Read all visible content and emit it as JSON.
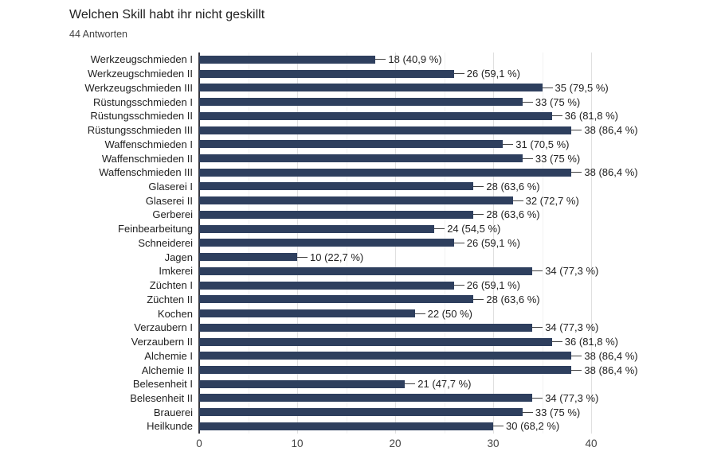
{
  "header": {
    "title": "Welchen Skill habt ihr nicht geskillt",
    "subtitle": "44 Antworten"
  },
  "chart_data": {
    "type": "bar",
    "orientation": "horizontal",
    "title": "Welchen Skill habt ihr nicht geskillt",
    "subtitle": "44 Antworten",
    "total_responses": 44,
    "categories": [
      "Werkzeugschmieden I",
      "Werkzeugschmieden II",
      "Werkzeugschmieden III",
      "Rüstungsschmieden I",
      "Rüstungsschmieden II",
      "Rüstungsschmieden III",
      "Waffenschmieden I",
      "Waffenschmieden II",
      "Waffenschmieden III",
      "Glaserei I",
      "Glaserei II",
      "Gerberei",
      "Feinbearbeitung",
      "Schneiderei",
      "Jagen",
      "Imkerei",
      "Züchten I",
      "Züchten II",
      "Kochen",
      "Verzaubern I",
      "Verzaubern II",
      "Alchemie I",
      "Alchemie II",
      "Belesenheit I",
      "Belesenheit II",
      "Brauerei",
      "Heilkunde"
    ],
    "values": [
      18,
      26,
      35,
      33,
      36,
      38,
      31,
      33,
      38,
      28,
      32,
      28,
      24,
      26,
      10,
      34,
      26,
      28,
      22,
      34,
      36,
      38,
      38,
      21,
      34,
      33,
      30
    ],
    "value_labels": [
      "18 (40,9 %)",
      "26 (59,1 %)",
      "35 (79,5 %)",
      "33 (75 %)",
      "36 (81,8 %)",
      "38 (86,4 %)",
      "31 (70,5 %)",
      "33 (75 %)",
      "38 (86,4 %)",
      "28 (63,6 %)",
      "32 (72,7 %)",
      "28 (63,6 %)",
      "24 (54,5 %)",
      "26 (59,1 %)",
      "10 (22,7 %)",
      "34 (77,3 %)",
      "26 (59,1 %)",
      "28 (63,6 %)",
      "22 (50 %)",
      "34 (77,3 %)",
      "36 (81,8 %)",
      "38 (86,4 %)",
      "38 (86,4 %)",
      "21 (47,7 %)",
      "34 (77,3 %)",
      "33 (75 %)",
      "30 (68,2 %)"
    ],
    "xlabel": "",
    "ylabel": "",
    "xlim": [
      0,
      40
    ],
    "xticks": [
      0,
      10,
      20,
      30,
      40
    ],
    "minor_gridlines": [
      5,
      15,
      25,
      35
    ],
    "grid": true,
    "legend": "none",
    "bar_color": "#2e3f5e",
    "colors": {
      "grid_major": "#e0e0e0",
      "grid_minor": "#f2f2f2",
      "axis_line": "#37373f",
      "text": "#212121",
      "tick_text": "#444444"
    }
  }
}
